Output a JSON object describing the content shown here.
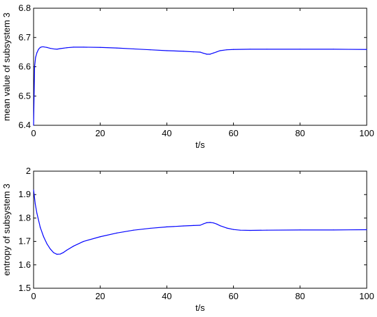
{
  "chart_data": [
    {
      "type": "line",
      "xlabel": "t/s",
      "ylabel": "mean value of subsystem 3",
      "xlim": [
        0,
        100
      ],
      "ylim": [
        6.4,
        6.8
      ],
      "xticks": [
        "0",
        "20",
        "40",
        "60",
        "80",
        "100"
      ],
      "yticks": [
        "6.4",
        "6.5",
        "6.6",
        "6.7",
        "6.8"
      ],
      "grid": false,
      "line_color": "#0000ff",
      "series": [
        {
          "x": [
            0,
            0.3,
            0.6,
            1,
            1.5,
            2,
            2.5,
            3,
            4,
            5,
            6,
            7,
            8,
            10,
            12,
            15,
            20,
            25,
            30,
            35,
            40,
            45,
            48,
            50,
            51,
            52,
            53,
            54,
            55,
            56,
            58,
            60,
            65,
            70,
            80,
            90,
            100
          ],
          "values": [
            6.4,
            6.6,
            6.632,
            6.648,
            6.66,
            6.666,
            6.668,
            6.668,
            6.666,
            6.663,
            6.661,
            6.66,
            6.662,
            6.665,
            6.667,
            6.667,
            6.666,
            6.664,
            6.661,
            6.658,
            6.655,
            6.653,
            6.651,
            6.65,
            6.646,
            6.643,
            6.643,
            6.647,
            6.651,
            6.655,
            6.658,
            6.659,
            6.66,
            6.66,
            6.66,
            6.66,
            6.659
          ]
        }
      ]
    },
    {
      "type": "line",
      "xlabel": "t/s",
      "ylabel": "entropy of subsystem 3",
      "xlim": [
        0,
        100
      ],
      "ylim": [
        1.5,
        2.0
      ],
      "xticks": [
        "0",
        "20",
        "40",
        "60",
        "80",
        "100"
      ],
      "yticks": [
        "1.5",
        "1.6",
        "1.7",
        "1.8",
        "1.9",
        "2"
      ],
      "grid": false,
      "line_color": "#0000ff",
      "series": [
        {
          "x": [
            0,
            0.5,
            1,
            2,
            3,
            4,
            5,
            6,
            7,
            8,
            9,
            10,
            12,
            15,
            20,
            25,
            30,
            35,
            40,
            45,
            48,
            50,
            51,
            52,
            53,
            54,
            55,
            56,
            58,
            60,
            62,
            65,
            70,
            80,
            90,
            100
          ],
          "values": [
            1.92,
            1.86,
            1.82,
            1.76,
            1.72,
            1.69,
            1.668,
            1.652,
            1.645,
            1.646,
            1.653,
            1.663,
            1.68,
            1.7,
            1.72,
            1.736,
            1.748,
            1.756,
            1.762,
            1.766,
            1.768,
            1.769,
            1.775,
            1.78,
            1.781,
            1.779,
            1.774,
            1.767,
            1.757,
            1.751,
            1.748,
            1.747,
            1.748,
            1.749,
            1.749,
            1.75
          ]
        }
      ]
    }
  ]
}
